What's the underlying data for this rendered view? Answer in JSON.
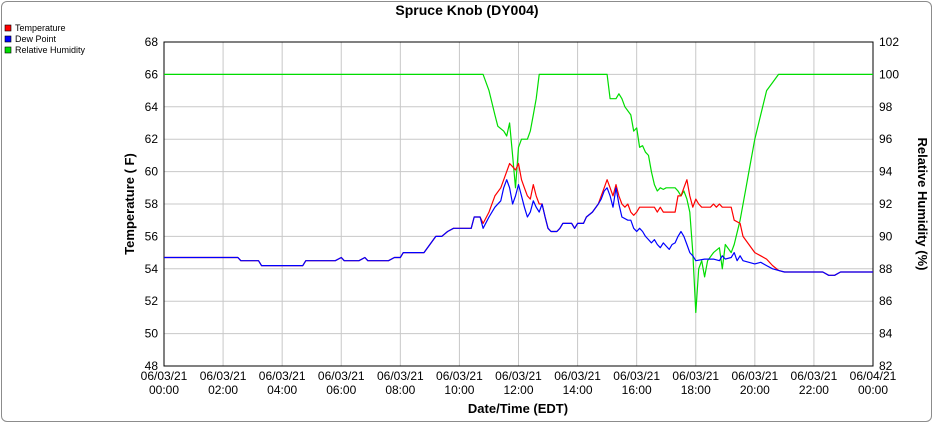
{
  "chart_data": {
    "type": "line",
    "title": "Spruce Knob (DY004)",
    "xlabel": "Date/Time (EDT)",
    "ylabel_left": "Temperature ( F)",
    "ylabel_right": "Relative Humidity (%)",
    "x_range_hours": [
      0,
      24
    ],
    "ylim_left": [
      48,
      68
    ],
    "ylim_right": [
      82,
      102
    ],
    "yticks_left": [
      "48",
      "50",
      "52",
      "54",
      "56",
      "58",
      "60",
      "62",
      "64",
      "66",
      "68"
    ],
    "yticks_right": [
      "82",
      "84",
      "86",
      "88",
      "90",
      "92",
      "94",
      "96",
      "98",
      "100",
      "102"
    ],
    "xticks": [
      {
        "date": "06/03/21",
        "time": "00:00"
      },
      {
        "date": "06/03/21",
        "time": "02:00"
      },
      {
        "date": "06/03/21",
        "time": "04:00"
      },
      {
        "date": "06/03/21",
        "time": "06:00"
      },
      {
        "date": "06/03/21",
        "time": "08:00"
      },
      {
        "date": "06/03/21",
        "time": "10:00"
      },
      {
        "date": "06/03/21",
        "time": "12:00"
      },
      {
        "date": "06/03/21",
        "time": "14:00"
      },
      {
        "date": "06/03/21",
        "time": "16:00"
      },
      {
        "date": "06/03/21",
        "time": "18:00"
      },
      {
        "date": "06/03/21",
        "time": "20:00"
      },
      {
        "date": "06/03/21",
        "time": "22:00"
      },
      {
        "date": "06/04/21",
        "time": "00:00"
      }
    ],
    "grid": true,
    "legend_position": "top-left",
    "series": [
      {
        "name": "Temperature",
        "color": "#ff0000",
        "axis": "left",
        "points": [
          [
            0,
            54.7
          ],
          [
            2.5,
            54.7
          ],
          [
            2.6,
            54.5
          ],
          [
            3.2,
            54.5
          ],
          [
            3.3,
            54.2
          ],
          [
            4.7,
            54.2
          ],
          [
            4.8,
            54.5
          ],
          [
            5.8,
            54.5
          ],
          [
            6.0,
            54.7
          ],
          [
            6.1,
            54.5
          ],
          [
            6.6,
            54.5
          ],
          [
            6.8,
            54.7
          ],
          [
            6.9,
            54.5
          ],
          [
            7.6,
            54.5
          ],
          [
            7.8,
            54.7
          ],
          [
            8.0,
            54.7
          ],
          [
            8.1,
            55.0
          ],
          [
            8.8,
            55.0
          ],
          [
            9.0,
            55.5
          ],
          [
            9.2,
            56.0
          ],
          [
            9.4,
            56.0
          ],
          [
            9.6,
            56.3
          ],
          [
            9.8,
            56.5
          ],
          [
            10.4,
            56.5
          ],
          [
            10.5,
            57.2
          ],
          [
            10.7,
            57.2
          ],
          [
            10.8,
            56.8
          ],
          [
            11.0,
            57.5
          ],
          [
            11.2,
            58.5
          ],
          [
            11.4,
            59.0
          ],
          [
            11.6,
            60.0
          ],
          [
            11.7,
            60.5
          ],
          [
            11.8,
            60.3
          ],
          [
            11.9,
            60.1
          ],
          [
            12.0,
            60.5
          ],
          [
            12.1,
            59.5
          ],
          [
            12.2,
            59.0
          ],
          [
            12.3,
            58.5
          ],
          [
            12.4,
            58.3
          ],
          [
            12.5,
            59.2
          ],
          [
            12.6,
            58.5
          ],
          [
            12.7,
            58.0
          ],
          [
            12.8,
            58.0
          ],
          [
            12.9,
            57.2
          ],
          [
            13.0,
            56.5
          ],
          [
            13.1,
            56.3
          ],
          [
            13.3,
            56.3
          ],
          [
            13.4,
            56.5
          ],
          [
            13.5,
            56.8
          ],
          [
            13.8,
            56.8
          ],
          [
            13.9,
            56.5
          ],
          [
            14.0,
            56.8
          ],
          [
            14.2,
            56.8
          ],
          [
            14.3,
            57.2
          ],
          [
            14.5,
            57.5
          ],
          [
            14.7,
            58.0
          ],
          [
            14.8,
            58.5
          ],
          [
            14.9,
            59.0
          ],
          [
            15.0,
            59.5
          ],
          [
            15.1,
            59.0
          ],
          [
            15.2,
            58.5
          ],
          [
            15.3,
            59.2
          ],
          [
            15.4,
            58.5
          ],
          [
            15.5,
            58.0
          ],
          [
            15.6,
            57.8
          ],
          [
            15.7,
            58.0
          ],
          [
            15.8,
            57.5
          ],
          [
            15.9,
            57.3
          ],
          [
            16.0,
            57.5
          ],
          [
            16.1,
            57.8
          ],
          [
            16.6,
            57.8
          ],
          [
            16.7,
            57.5
          ],
          [
            16.8,
            57.8
          ],
          [
            16.9,
            57.5
          ],
          [
            17.0,
            57.5
          ],
          [
            17.2,
            57.5
          ],
          [
            17.3,
            57.5
          ],
          [
            17.4,
            58.5
          ],
          [
            17.5,
            58.5
          ],
          [
            17.6,
            59.0
          ],
          [
            17.7,
            59.5
          ],
          [
            17.8,
            58.5
          ],
          [
            17.9,
            57.8
          ],
          [
            18.0,
            58.3
          ],
          [
            18.1,
            58.0
          ],
          [
            18.2,
            57.8
          ],
          [
            18.5,
            57.8
          ],
          [
            18.6,
            58.0
          ],
          [
            18.7,
            57.8
          ],
          [
            18.8,
            58.0
          ],
          [
            18.9,
            57.8
          ],
          [
            19.2,
            57.8
          ],
          [
            19.3,
            57.0
          ],
          [
            19.5,
            56.8
          ],
          [
            19.6,
            56.0
          ],
          [
            19.8,
            55.5
          ],
          [
            20.0,
            55.0
          ],
          [
            20.2,
            54.8
          ],
          [
            20.4,
            54.6
          ],
          [
            20.6,
            54.2
          ],
          [
            20.8,
            53.9
          ],
          [
            21.0,
            53.8
          ],
          [
            22.3,
            53.8
          ],
          [
            22.5,
            53.6
          ],
          [
            22.7,
            53.6
          ],
          [
            22.9,
            53.8
          ],
          [
            24,
            53.8
          ]
        ]
      },
      {
        "name": "Dew Point",
        "color": "#0000ff",
        "axis": "left",
        "points": [
          [
            0,
            54.7
          ],
          [
            2.5,
            54.7
          ],
          [
            2.6,
            54.5
          ],
          [
            3.2,
            54.5
          ],
          [
            3.3,
            54.2
          ],
          [
            4.7,
            54.2
          ],
          [
            4.8,
            54.5
          ],
          [
            5.8,
            54.5
          ],
          [
            6.0,
            54.7
          ],
          [
            6.1,
            54.5
          ],
          [
            6.6,
            54.5
          ],
          [
            6.8,
            54.7
          ],
          [
            6.9,
            54.5
          ],
          [
            7.6,
            54.5
          ],
          [
            7.8,
            54.7
          ],
          [
            8.0,
            54.7
          ],
          [
            8.1,
            55.0
          ],
          [
            8.8,
            55.0
          ],
          [
            9.0,
            55.5
          ],
          [
            9.2,
            56.0
          ],
          [
            9.4,
            56.0
          ],
          [
            9.6,
            56.3
          ],
          [
            9.8,
            56.5
          ],
          [
            10.4,
            56.5
          ],
          [
            10.5,
            57.2
          ],
          [
            10.7,
            57.2
          ],
          [
            10.8,
            56.5
          ],
          [
            11.0,
            57.2
          ],
          [
            11.2,
            57.8
          ],
          [
            11.4,
            58.2
          ],
          [
            11.5,
            59.0
          ],
          [
            11.6,
            59.5
          ],
          [
            11.7,
            59.0
          ],
          [
            11.8,
            58.0
          ],
          [
            11.9,
            58.5
          ],
          [
            12.0,
            59.2
          ],
          [
            12.1,
            58.5
          ],
          [
            12.2,
            57.8
          ],
          [
            12.3,
            57.2
          ],
          [
            12.4,
            57.5
          ],
          [
            12.5,
            58.2
          ],
          [
            12.6,
            57.8
          ],
          [
            12.7,
            57.5
          ],
          [
            12.8,
            58.0
          ],
          [
            12.9,
            57.2
          ],
          [
            13.0,
            56.5
          ],
          [
            13.1,
            56.3
          ],
          [
            13.3,
            56.3
          ],
          [
            13.4,
            56.5
          ],
          [
            13.5,
            56.8
          ],
          [
            13.8,
            56.8
          ],
          [
            13.9,
            56.5
          ],
          [
            14.0,
            56.8
          ],
          [
            14.2,
            56.8
          ],
          [
            14.3,
            57.2
          ],
          [
            14.5,
            57.5
          ],
          [
            14.7,
            58.0
          ],
          [
            14.8,
            58.3
          ],
          [
            14.9,
            58.8
          ],
          [
            15.0,
            59.0
          ],
          [
            15.1,
            58.5
          ],
          [
            15.2,
            57.8
          ],
          [
            15.3,
            59.0
          ],
          [
            15.4,
            58.0
          ],
          [
            15.5,
            57.2
          ],
          [
            15.7,
            57.0
          ],
          [
            15.8,
            57.0
          ],
          [
            15.9,
            56.5
          ],
          [
            16.0,
            56.3
          ],
          [
            16.1,
            56.5
          ],
          [
            16.2,
            56.3
          ],
          [
            16.3,
            56.0
          ],
          [
            16.4,
            55.8
          ],
          [
            16.5,
            55.6
          ],
          [
            16.6,
            55.8
          ],
          [
            16.7,
            55.5
          ],
          [
            16.8,
            55.3
          ],
          [
            16.9,
            55.6
          ],
          [
            17.0,
            55.4
          ],
          [
            17.1,
            55.2
          ],
          [
            17.2,
            55.5
          ],
          [
            17.3,
            55.6
          ],
          [
            17.4,
            56.0
          ],
          [
            17.5,
            56.3
          ],
          [
            17.6,
            56.0
          ],
          [
            17.7,
            55.5
          ],
          [
            17.8,
            55.0
          ],
          [
            17.9,
            54.8
          ],
          [
            18.0,
            54.5
          ],
          [
            18.3,
            54.6
          ],
          [
            18.6,
            54.6
          ],
          [
            18.8,
            54.5
          ],
          [
            18.9,
            54.8
          ],
          [
            19.0,
            54.6
          ],
          [
            19.2,
            54.7
          ],
          [
            19.3,
            55.0
          ],
          [
            19.4,
            54.5
          ],
          [
            19.5,
            54.8
          ],
          [
            19.6,
            54.5
          ],
          [
            19.8,
            54.4
          ],
          [
            20.0,
            54.3
          ],
          [
            20.2,
            54.4
          ],
          [
            20.4,
            54.2
          ],
          [
            20.6,
            54.0
          ],
          [
            20.8,
            53.9
          ],
          [
            21.0,
            53.8
          ],
          [
            22.3,
            53.8
          ],
          [
            22.5,
            53.6
          ],
          [
            22.7,
            53.6
          ],
          [
            22.9,
            53.8
          ],
          [
            24,
            53.8
          ]
        ]
      },
      {
        "name": "Relative Humidity",
        "color": "#00dd00",
        "axis": "right",
        "points": [
          [
            0,
            100
          ],
          [
            10.8,
            100
          ],
          [
            11.0,
            99
          ],
          [
            11.2,
            97.5
          ],
          [
            11.3,
            96.8
          ],
          [
            11.5,
            96.5
          ],
          [
            11.6,
            96.2
          ],
          [
            11.7,
            97
          ],
          [
            11.8,
            95
          ],
          [
            11.9,
            93
          ],
          [
            12.0,
            95.5
          ],
          [
            12.1,
            96
          ],
          [
            12.3,
            96
          ],
          [
            12.4,
            96.5
          ],
          [
            12.5,
            97.5
          ],
          [
            12.6,
            98.5
          ],
          [
            12.7,
            100
          ],
          [
            14.8,
            100
          ],
          [
            15.0,
            100
          ],
          [
            15.1,
            98.5
          ],
          [
            15.3,
            98.5
          ],
          [
            15.4,
            98.8
          ],
          [
            15.5,
            98.5
          ],
          [
            15.6,
            98
          ],
          [
            15.8,
            97.5
          ],
          [
            15.9,
            96.5
          ],
          [
            16.0,
            96.7
          ],
          [
            16.1,
            95.5
          ],
          [
            16.2,
            95.6
          ],
          [
            16.3,
            95.2
          ],
          [
            16.4,
            95.0
          ],
          [
            16.5,
            94
          ],
          [
            16.6,
            93.2
          ],
          [
            16.7,
            92.8
          ],
          [
            16.8,
            93.0
          ],
          [
            16.9,
            92.9
          ],
          [
            17.0,
            93.0
          ],
          [
            17.3,
            93.0
          ],
          [
            17.4,
            92.8
          ],
          [
            17.5,
            92.5
          ],
          [
            17.6,
            92.8
          ],
          [
            17.7,
            92.3
          ],
          [
            17.8,
            91.5
          ],
          [
            17.9,
            89
          ],
          [
            18.0,
            85.3
          ],
          [
            18.1,
            88
          ],
          [
            18.2,
            88.5
          ],
          [
            18.3,
            87.5
          ],
          [
            18.4,
            88.5
          ],
          [
            18.6,
            89
          ],
          [
            18.8,
            89.3
          ],
          [
            18.9,
            88
          ],
          [
            19.0,
            89.5
          ],
          [
            19.2,
            89
          ],
          [
            19.3,
            89.5
          ],
          [
            19.5,
            91
          ],
          [
            19.7,
            93
          ],
          [
            19.8,
            94
          ],
          [
            20.0,
            96
          ],
          [
            20.2,
            97.5
          ],
          [
            20.4,
            99
          ],
          [
            20.6,
            99.5
          ],
          [
            20.8,
            100
          ],
          [
            24,
            100
          ]
        ]
      }
    ]
  }
}
